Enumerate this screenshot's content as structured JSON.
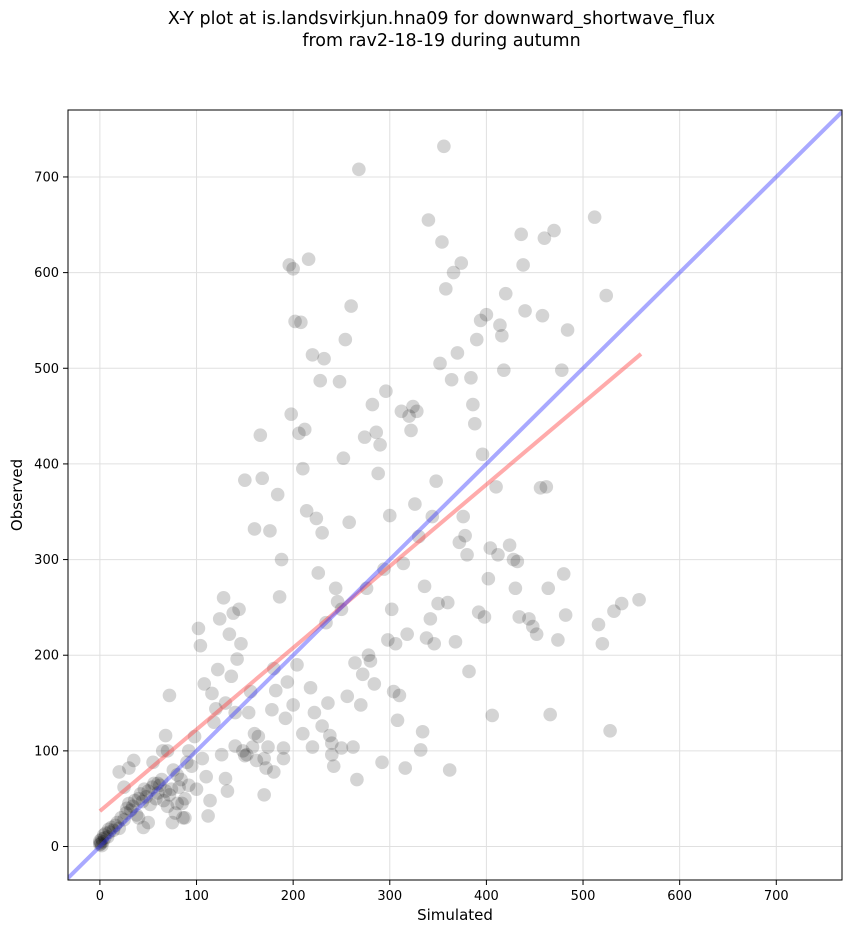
{
  "chart_data": {
    "type": "scatter",
    "title_line1": "X-Y plot at is.landsvirkjun.hna09 for downward_shortwave_flux",
    "title_line2": "from rav2-18-19 during autumn",
    "xlabel": "Simulated",
    "ylabel": "Observed",
    "xlim": [
      -33,
      768
    ],
    "ylim": [
      -35,
      770
    ],
    "xticks": [
      0,
      100,
      200,
      300,
      400,
      500,
      600,
      700
    ],
    "yticks": [
      0,
      100,
      200,
      300,
      400,
      500,
      600,
      700
    ],
    "grid": true,
    "colors": {
      "points": "#000000",
      "identity_line": "#3333ff",
      "fit_line": "#ff4444",
      "grid": "#e0e0e0"
    },
    "identity_line": {
      "name": "1:1",
      "x": [
        -33,
        768
      ],
      "y": [
        -33,
        768
      ]
    },
    "fit_line": {
      "name": "linear fit",
      "x": [
        0,
        560
      ],
      "y": [
        37,
        515
      ]
    },
    "points": [
      [
        0,
        2
      ],
      [
        0,
        4
      ],
      [
        0,
        6
      ],
      [
        1,
        3
      ],
      [
        2,
        8
      ],
      [
        2,
        1
      ],
      [
        3,
        5
      ],
      [
        4,
        12
      ],
      [
        5,
        9
      ],
      [
        6,
        14
      ],
      [
        8,
        10
      ],
      [
        9,
        18
      ],
      [
        10,
        15
      ],
      [
        12,
        20
      ],
      [
        14,
        17
      ],
      [
        16,
        22
      ],
      [
        18,
        25
      ],
      [
        20,
        19
      ],
      [
        22,
        30
      ],
      [
        25,
        28
      ],
      [
        27,
        35
      ],
      [
        28,
        40
      ],
      [
        30,
        45
      ],
      [
        32,
        38
      ],
      [
        34,
        42
      ],
      [
        36,
        48
      ],
      [
        38,
        33
      ],
      [
        40,
        50
      ],
      [
        42,
        55
      ],
      [
        44,
        47
      ],
      [
        46,
        60
      ],
      [
        48,
        52
      ],
      [
        50,
        58
      ],
      [
        52,
        44
      ],
      [
        54,
        62
      ],
      [
        56,
        66
      ],
      [
        58,
        50
      ],
      [
        60,
        56
      ],
      [
        62,
        64
      ],
      [
        64,
        70
      ],
      [
        66,
        48
      ],
      [
        68,
        58
      ],
      [
        70,
        42
      ],
      [
        72,
        54
      ],
      [
        74,
        60
      ],
      [
        76,
        80
      ],
      [
        78,
        35
      ],
      [
        80,
        45
      ],
      [
        82,
        62
      ],
      [
        84,
        70
      ],
      [
        86,
        30
      ],
      [
        88,
        50
      ],
      [
        90,
        88
      ],
      [
        92,
        100
      ],
      [
        20,
        78
      ],
      [
        25,
        62
      ],
      [
        30,
        82
      ],
      [
        35,
        90
      ],
      [
        40,
        30
      ],
      [
        45,
        20
      ],
      [
        50,
        25
      ],
      [
        55,
        88
      ],
      [
        60,
        66
      ],
      [
        65,
        100
      ],
      [
        68,
        116
      ],
      [
        70,
        100
      ],
      [
        72,
        158
      ],
      [
        75,
        25
      ],
      [
        80,
        75
      ],
      [
        85,
        45
      ],
      [
        88,
        30
      ],
      [
        92,
        64
      ],
      [
        95,
        84
      ],
      [
        98,
        115
      ],
      [
        100,
        60
      ],
      [
        102,
        228
      ],
      [
        104,
        210
      ],
      [
        106,
        92
      ],
      [
        108,
        170
      ],
      [
        110,
        73
      ],
      [
        112,
        32
      ],
      [
        114,
        48
      ],
      [
        116,
        160
      ],
      [
        118,
        130
      ],
      [
        120,
        144
      ],
      [
        122,
        185
      ],
      [
        124,
        238
      ],
      [
        126,
        96
      ],
      [
        128,
        260
      ],
      [
        130,
        150
      ],
      [
        132,
        58
      ],
      [
        134,
        222
      ],
      [
        136,
        178
      ],
      [
        138,
        244
      ],
      [
        140,
        140
      ],
      [
        142,
        196
      ],
      [
        144,
        248
      ],
      [
        146,
        212
      ],
      [
        148,
        100
      ],
      [
        150,
        383
      ],
      [
        152,
        96
      ],
      [
        154,
        140
      ],
      [
        156,
        162
      ],
      [
        158,
        104
      ],
      [
        160,
        332
      ],
      [
        162,
        90
      ],
      [
        164,
        115
      ],
      [
        166,
        430
      ],
      [
        168,
        385
      ],
      [
        170,
        54
      ],
      [
        172,
        82
      ],
      [
        174,
        104
      ],
      [
        176,
        330
      ],
      [
        178,
        143
      ],
      [
        180,
        186
      ],
      [
        182,
        163
      ],
      [
        184,
        368
      ],
      [
        186,
        261
      ],
      [
        188,
        300
      ],
      [
        190,
        92
      ],
      [
        192,
        134
      ],
      [
        194,
        172
      ],
      [
        196,
        608
      ],
      [
        198,
        452
      ],
      [
        200,
        604
      ],
      [
        202,
        549
      ],
      [
        204,
        190
      ],
      [
        206,
        432
      ],
      [
        208,
        548
      ],
      [
        210,
        395
      ],
      [
        212,
        436
      ],
      [
        214,
        351
      ],
      [
        216,
        614
      ],
      [
        218,
        166
      ],
      [
        220,
        514
      ],
      [
        222,
        140
      ],
      [
        224,
        343
      ],
      [
        226,
        286
      ],
      [
        228,
        487
      ],
      [
        230,
        328
      ],
      [
        232,
        510
      ],
      [
        234,
        234
      ],
      [
        236,
        150
      ],
      [
        238,
        116
      ],
      [
        240,
        108
      ],
      [
        242,
        84
      ],
      [
        244,
        270
      ],
      [
        246,
        256
      ],
      [
        248,
        486
      ],
      [
        250,
        248
      ],
      [
        252,
        406
      ],
      [
        254,
        530
      ],
      [
        256,
        157
      ],
      [
        258,
        339
      ],
      [
        260,
        565
      ],
      [
        262,
        104
      ],
      [
        264,
        192
      ],
      [
        266,
        70
      ],
      [
        268,
        708
      ],
      [
        270,
        148
      ],
      [
        272,
        180
      ],
      [
        274,
        428
      ],
      [
        276,
        270
      ],
      [
        278,
        200
      ],
      [
        280,
        194
      ],
      [
        282,
        462
      ],
      [
        284,
        170
      ],
      [
        286,
        433
      ],
      [
        288,
        390
      ],
      [
        290,
        420
      ],
      [
        292,
        88
      ],
      [
        294,
        290
      ],
      [
        296,
        476
      ],
      [
        298,
        216
      ],
      [
        300,
        346
      ],
      [
        302,
        248
      ],
      [
        304,
        162
      ],
      [
        306,
        212
      ],
      [
        308,
        132
      ],
      [
        310,
        158
      ],
      [
        312,
        455
      ],
      [
        314,
        296
      ],
      [
        316,
        82
      ],
      [
        318,
        222
      ],
      [
        320,
        450
      ],
      [
        322,
        435
      ],
      [
        324,
        460
      ],
      [
        326,
        358
      ],
      [
        328,
        455
      ],
      [
        330,
        324
      ],
      [
        332,
        101
      ],
      [
        334,
        120
      ],
      [
        336,
        272
      ],
      [
        338,
        218
      ],
      [
        340,
        655
      ],
      [
        342,
        238
      ],
      [
        344,
        345
      ],
      [
        346,
        212
      ],
      [
        348,
        382
      ],
      [
        350,
        254
      ],
      [
        352,
        505
      ],
      [
        354,
        632
      ],
      [
        356,
        732
      ],
      [
        358,
        583
      ],
      [
        360,
        255
      ],
      [
        362,
        80
      ],
      [
        364,
        488
      ],
      [
        366,
        600
      ],
      [
        368,
        214
      ],
      [
        370,
        516
      ],
      [
        372,
        318
      ],
      [
        374,
        610
      ],
      [
        376,
        345
      ],
      [
        378,
        325
      ],
      [
        380,
        305
      ],
      [
        382,
        183
      ],
      [
        384,
        490
      ],
      [
        386,
        462
      ],
      [
        388,
        442
      ],
      [
        390,
        530
      ],
      [
        392,
        245
      ],
      [
        394,
        550
      ],
      [
        396,
        410
      ],
      [
        398,
        240
      ],
      [
        400,
        556
      ],
      [
        402,
        280
      ],
      [
        404,
        312
      ],
      [
        406,
        137
      ],
      [
        410,
        376
      ],
      [
        412,
        305
      ],
      [
        414,
        545
      ],
      [
        416,
        534
      ],
      [
        418,
        498
      ],
      [
        420,
        578
      ],
      [
        424,
        315
      ],
      [
        428,
        300
      ],
      [
        430,
        270
      ],
      [
        432,
        298
      ],
      [
        434,
        240
      ],
      [
        436,
        640
      ],
      [
        438,
        608
      ],
      [
        440,
        560
      ],
      [
        444,
        238
      ],
      [
        448,
        230
      ],
      [
        452,
        222
      ],
      [
        456,
        375
      ],
      [
        458,
        555
      ],
      [
        460,
        636
      ],
      [
        462,
        376
      ],
      [
        464,
        270
      ],
      [
        466,
        138
      ],
      [
        470,
        644
      ],
      [
        474,
        216
      ],
      [
        478,
        498
      ],
      [
        480,
        285
      ],
      [
        482,
        242
      ],
      [
        484,
        540
      ],
      [
        512,
        658
      ],
      [
        516,
        232
      ],
      [
        520,
        212
      ],
      [
        524,
        576
      ],
      [
        528,
        121
      ],
      [
        532,
        246
      ],
      [
        540,
        254
      ],
      [
        558,
        258
      ],
      [
        130,
        71
      ],
      [
        140,
        105
      ],
      [
        150,
        95
      ],
      [
        160,
        118
      ],
      [
        170,
        92
      ],
      [
        180,
        78
      ],
      [
        190,
        103
      ],
      [
        200,
        148
      ],
      [
        210,
        118
      ],
      [
        220,
        104
      ],
      [
        230,
        126
      ],
      [
        240,
        96
      ],
      [
        250,
        103
      ]
    ]
  }
}
